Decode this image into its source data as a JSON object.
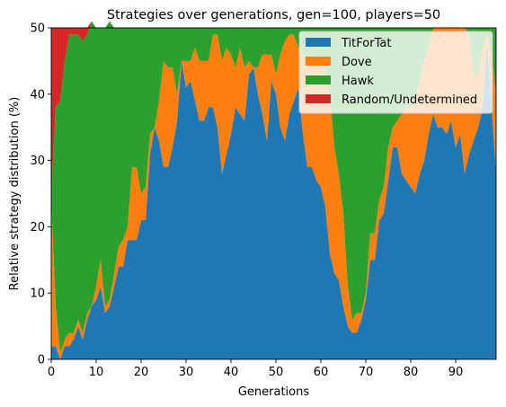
{
  "chart_data": {
    "type": "area",
    "stacked": true,
    "title": "Strategies over generations, gen=100, players=50",
    "xlabel": "Generations",
    "ylabel": "Relative strategy distribution (%)",
    "xlim": [
      0,
      99
    ],
    "ylim": [
      0,
      50
    ],
    "xticks": [
      0,
      10,
      20,
      30,
      40,
      50,
      60,
      70,
      80,
      90
    ],
    "yticks": [
      0,
      10,
      20,
      30,
      40,
      50
    ],
    "grid": false,
    "legend_position": "upper right",
    "x_start": 0,
    "series": [
      {
        "name": "TitForTat",
        "color": "#1f77b4",
        "values": [
          2,
          2,
          0,
          2,
          2,
          3,
          5,
          3,
          6,
          8,
          9,
          11,
          7,
          8,
          11,
          14,
          14,
          18,
          18,
          18,
          21,
          21,
          31,
          35,
          33,
          29,
          29,
          32,
          36,
          45,
          41,
          42,
          39,
          36,
          36,
          38,
          38,
          35,
          28,
          31,
          34,
          38,
          37,
          36,
          43,
          44,
          40,
          37,
          33,
          42,
          40,
          35,
          33,
          37,
          39,
          41,
          34,
          29,
          29,
          27,
          26,
          23,
          16,
          13,
          12,
          8,
          5,
          4,
          4,
          6,
          9,
          15,
          15,
          21,
          22,
          27,
          32,
          32,
          28,
          27,
          26,
          25,
          28,
          30,
          34,
          37,
          35,
          35,
          34,
          36,
          32,
          34,
          28,
          31,
          33,
          35,
          38,
          48,
          38,
          28
        ]
      },
      {
        "name": "Dove",
        "color": "#ff7f0e",
        "values": [
          22,
          6,
          1,
          1,
          2,
          1,
          1,
          1,
          1,
          0,
          2,
          4,
          1,
          1,
          2,
          3,
          4,
          2,
          11,
          11,
          4,
          5,
          3,
          0,
          6,
          16,
          15,
          12,
          4,
          0,
          4,
          3,
          8,
          9,
          9,
          7,
          11,
          14,
          17,
          16,
          12,
          6,
          10,
          8,
          2,
          0,
          4,
          9,
          13,
          4,
          3,
          11,
          15,
          12,
          10,
          6,
          12,
          16,
          17,
          18,
          19,
          21,
          24,
          19,
          16,
          14,
          6,
          2,
          3,
          1,
          1,
          4,
          4,
          3,
          4,
          5,
          3,
          4,
          9,
          11,
          12,
          14,
          14,
          15,
          13,
          13,
          15,
          15,
          16,
          14,
          18,
          16,
          22,
          18,
          10,
          8,
          9,
          1,
          8,
          12
        ]
      },
      {
        "name": "Hawk",
        "color": "#2ca02c",
        "values": [
          1,
          30,
          38,
          42,
          45,
          45,
          43,
          44,
          42,
          43,
          39,
          35,
          42,
          42,
          37,
          33,
          32,
          30,
          21,
          21,
          25,
          24,
          16,
          15,
          11,
          5,
          6,
          6,
          10,
          5,
          5,
          5,
          3,
          5,
          5,
          5,
          1,
          1,
          5,
          3,
          4,
          6,
          3,
          6,
          5,
          6,
          6,
          4,
          4,
          4,
          7,
          4,
          2,
          1,
          1,
          3,
          4,
          5,
          4,
          5,
          5,
          6,
          10,
          18,
          22,
          28,
          39,
          44,
          43,
          43,
          40,
          31,
          31,
          26,
          24,
          18,
          15,
          14,
          13,
          12,
          12,
          11,
          8,
          5,
          3,
          0,
          0,
          0,
          0,
          0,
          0,
          0,
          0,
          1,
          7,
          7,
          3,
          1,
          4,
          10
        ]
      },
      {
        "name": "Random/Undetermined",
        "color": "#d62728",
        "values": [
          25,
          12,
          11,
          5,
          1,
          1,
          1,
          2,
          1,
          0,
          0,
          0,
          0,
          0,
          0,
          0,
          0,
          0,
          0,
          0,
          0,
          0,
          0,
          0,
          0,
          0,
          0,
          0,
          0,
          0,
          0,
          0,
          0,
          0,
          0,
          0,
          0,
          0,
          0,
          0,
          0,
          0,
          0,
          0,
          0,
          0,
          0,
          0,
          0,
          0,
          0,
          0,
          0,
          0,
          0,
          0,
          0,
          0,
          0,
          0,
          0,
          0,
          0,
          0,
          0,
          0,
          0,
          0,
          0,
          0,
          0,
          0,
          0,
          0,
          0,
          0,
          0,
          0,
          0,
          0,
          0,
          0,
          0,
          0,
          0,
          0,
          0,
          0,
          0,
          0,
          0,
          0,
          0,
          0,
          0,
          0,
          0,
          0,
          0,
          0
        ]
      }
    ]
  }
}
